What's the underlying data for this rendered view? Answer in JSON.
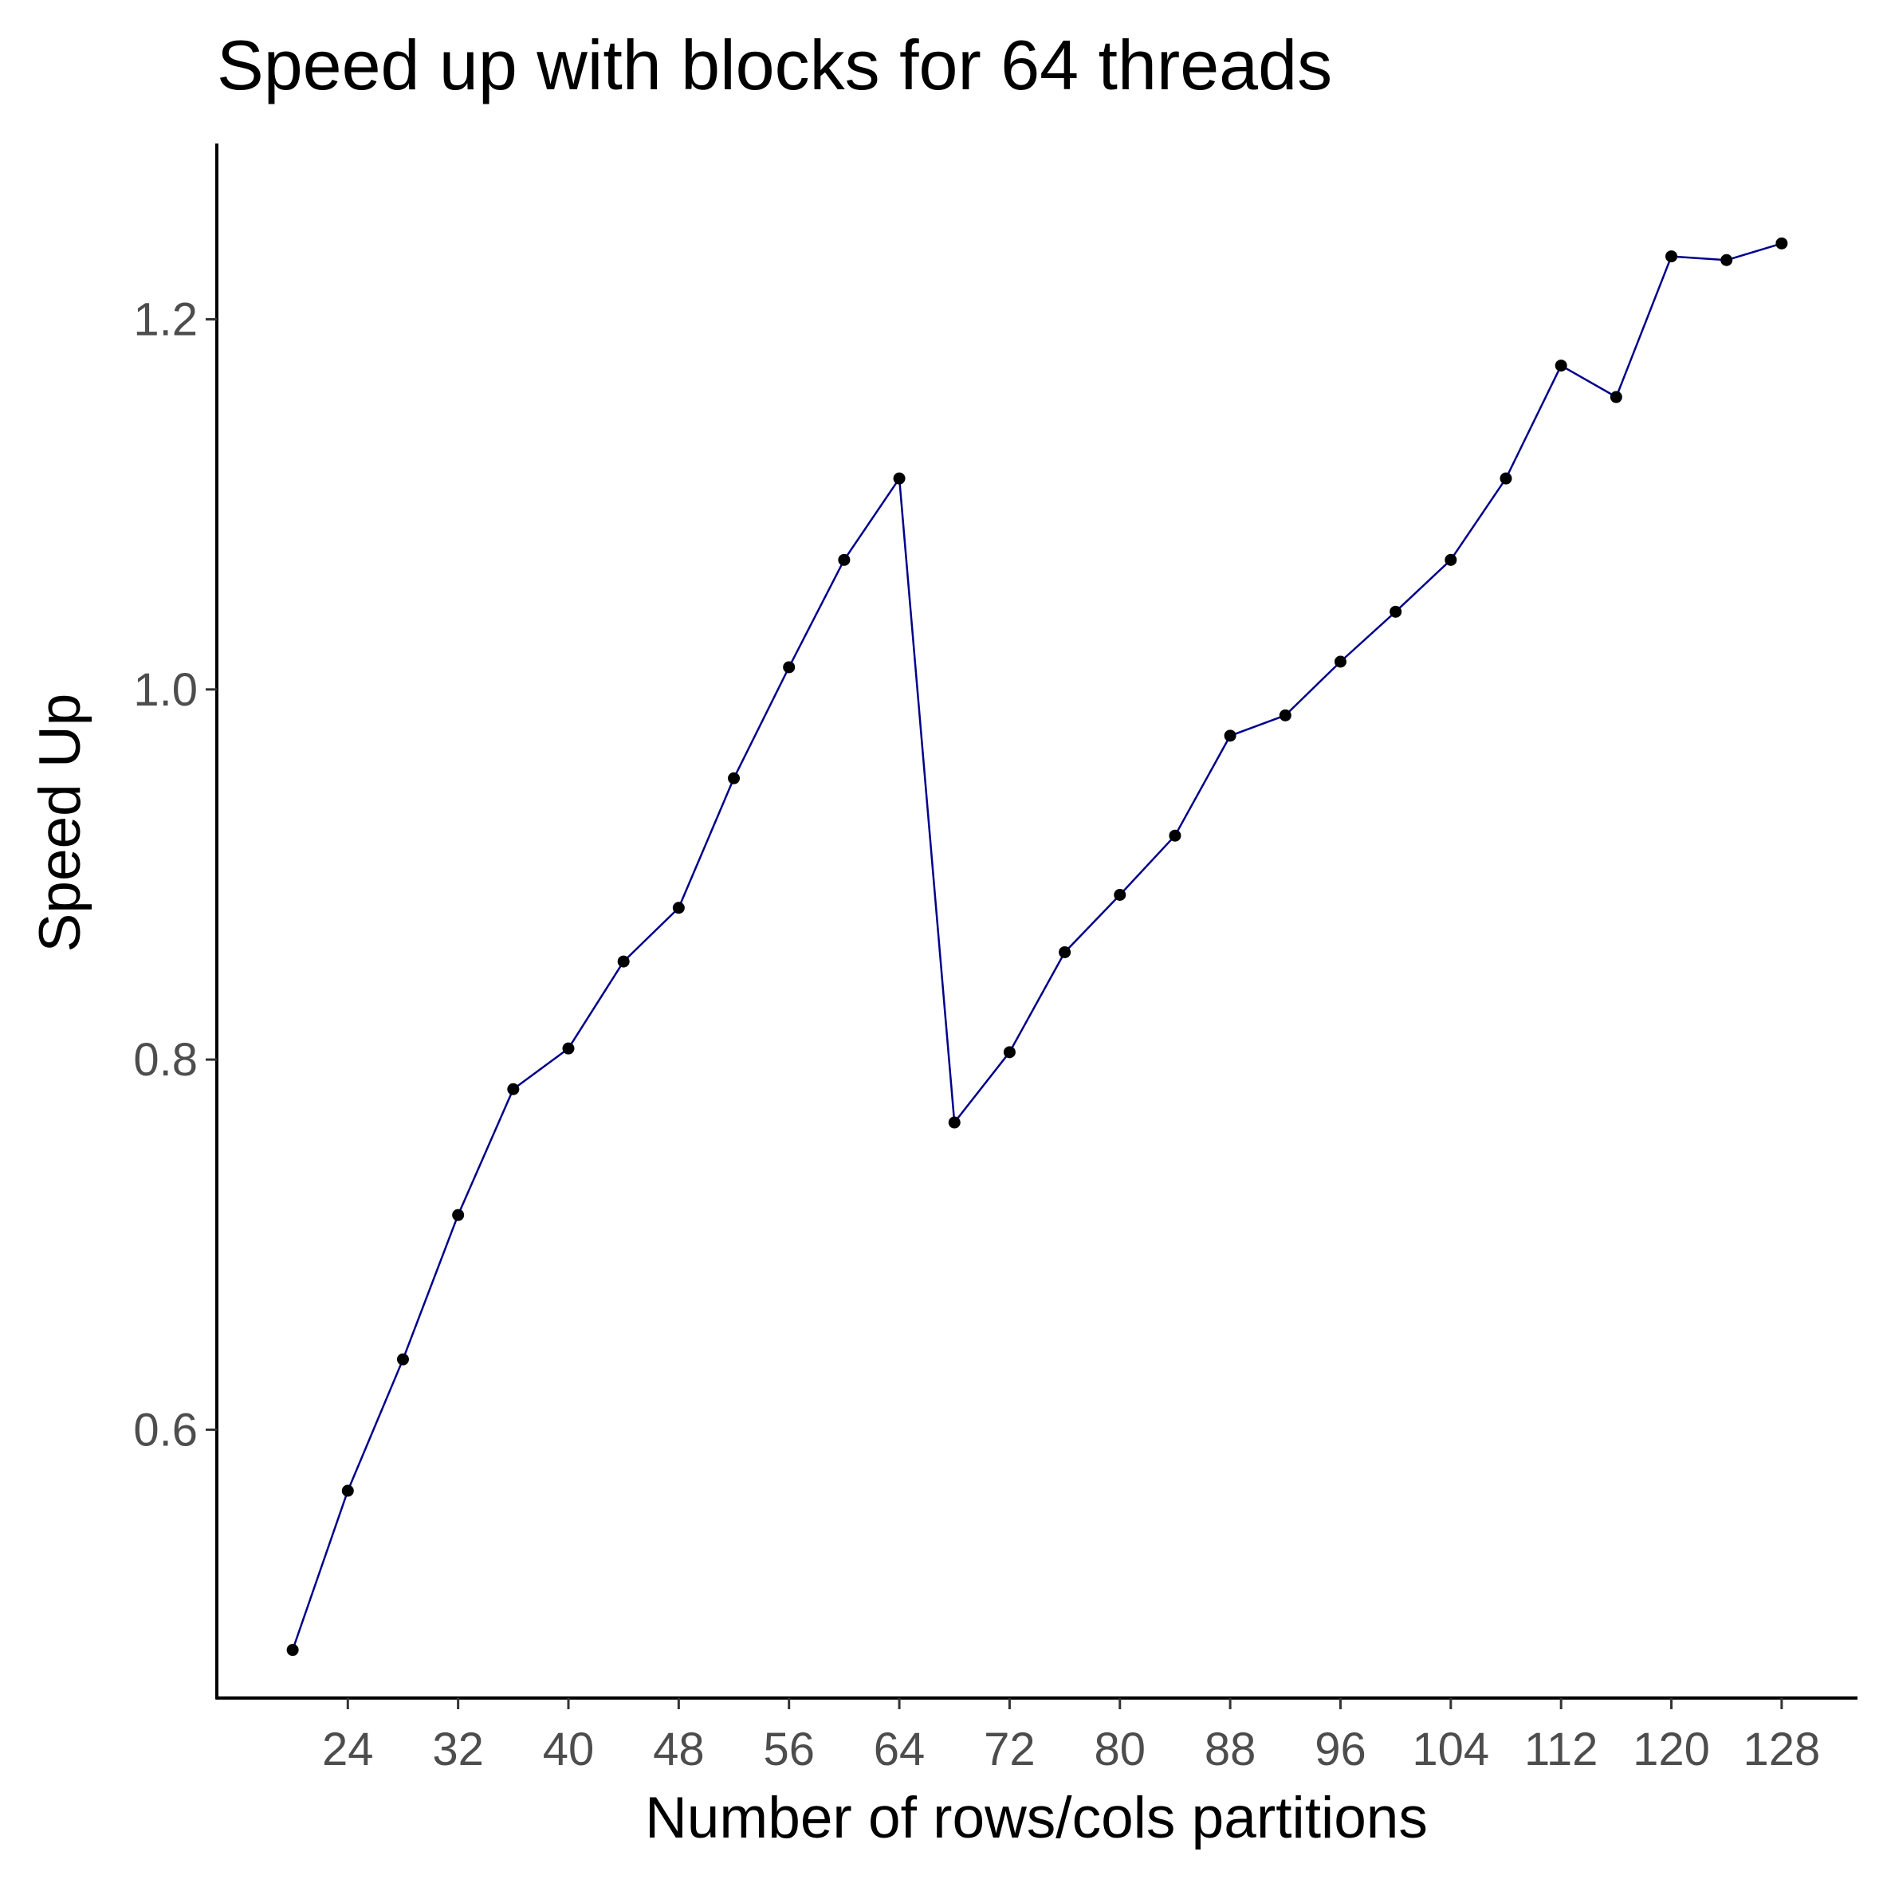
{
  "chart_data": {
    "type": "line",
    "title": "Speed up with blocks for 64 threads",
    "xlabel": "Number of rows/cols partitions",
    "ylabel": "Speed Up",
    "x_ticks": [
      24,
      32,
      40,
      48,
      56,
      64,
      72,
      80,
      88,
      96,
      104,
      112,
      120,
      128
    ],
    "y_ticks": [
      0.6,
      0.8,
      1.0,
      1.2
    ],
    "y_tick_labels": [
      "0.6",
      "0.8",
      "1.0",
      "1.2"
    ],
    "xlim": [
      14.5,
      133.5
    ],
    "ylim": [
      0.455,
      1.295
    ],
    "grid": false,
    "line_color": "#00008b",
    "point_color": "#000000",
    "series": [
      {
        "x": [
          20,
          24,
          28,
          32,
          36,
          40,
          44,
          48,
          52,
          56,
          60,
          64,
          68,
          72,
          76,
          80,
          84,
          88,
          92,
          96,
          100,
          104,
          108,
          112,
          116,
          120,
          124,
          128
        ],
        "y": [
          0.481,
          0.567,
          0.638,
          0.716,
          0.784,
          0.806,
          0.853,
          0.882,
          0.952,
          1.012,
          1.07,
          1.114,
          0.766,
          0.804,
          0.858,
          0.889,
          0.921,
          0.975,
          0.986,
          1.015,
          1.042,
          1.07,
          1.114,
          1.175,
          1.158,
          1.234,
          1.232,
          1.241
        ]
      }
    ]
  }
}
